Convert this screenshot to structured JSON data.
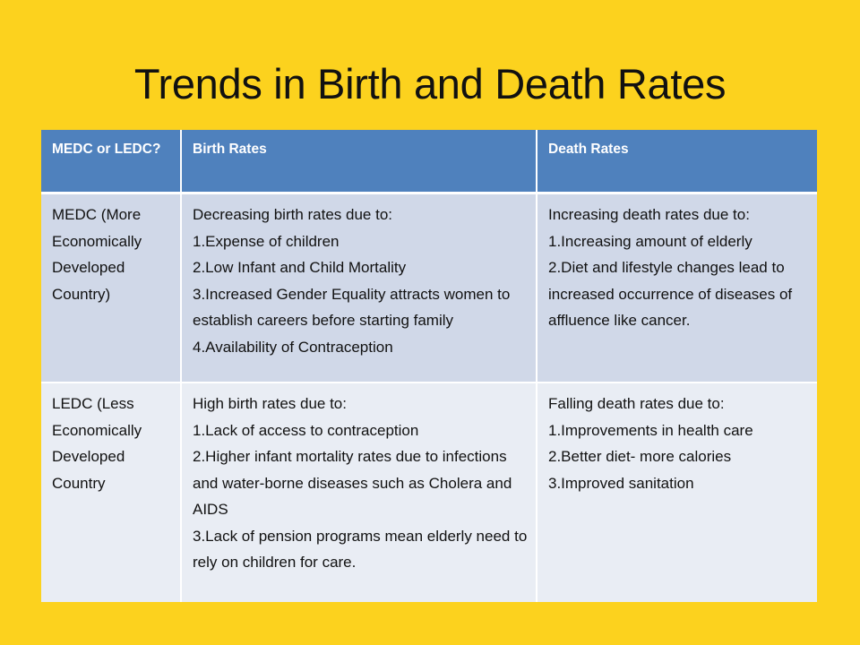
{
  "slide": {
    "title": "Trends in Birth and Death Rates"
  },
  "table": {
    "headers": [
      "MEDC or LEDC?",
      "Birth Rates",
      "Death Rates"
    ],
    "rows": [
      {
        "category": "MEDC (More Economically Developed Country)",
        "birth": {
          "lead": "Decreasing birth rates due to:",
          "items": [
            "1.Expense of children",
            "2.Low Infant and Child Mortality",
            "3.Increased Gender Equality attracts women to establish careers before starting family",
            "4.Availability of Contraception"
          ]
        },
        "death": {
          "lead": "Increasing death rates due to:",
          "items": [
            "1.Increasing amount of elderly",
            "2.Diet and lifestyle changes lead to increased occurrence of diseases of affluence like cancer."
          ]
        }
      },
      {
        "category": "LEDC (Less Economically Developed Country",
        "birth": {
          "lead": "High birth rates due to:",
          "items": [
            "1.Lack of access to contraception",
            "2.Higher infant mortality rates due to infections and water-borne diseases such as Cholera and AIDS",
            "3.Lack of pension programs mean elderly need to rely on children for care."
          ]
        },
        "death": {
          "lead": "Falling death rates due to:",
          "items": [
            "1.Improvements in health care",
            "2.Better diet- more calories",
            "3.Improved sanitation"
          ]
        }
      }
    ]
  },
  "colors": {
    "background": "#fcd21e",
    "header": "#4f81bd",
    "row_odd": "#d0d8e8",
    "row_even": "#e9edf4"
  }
}
